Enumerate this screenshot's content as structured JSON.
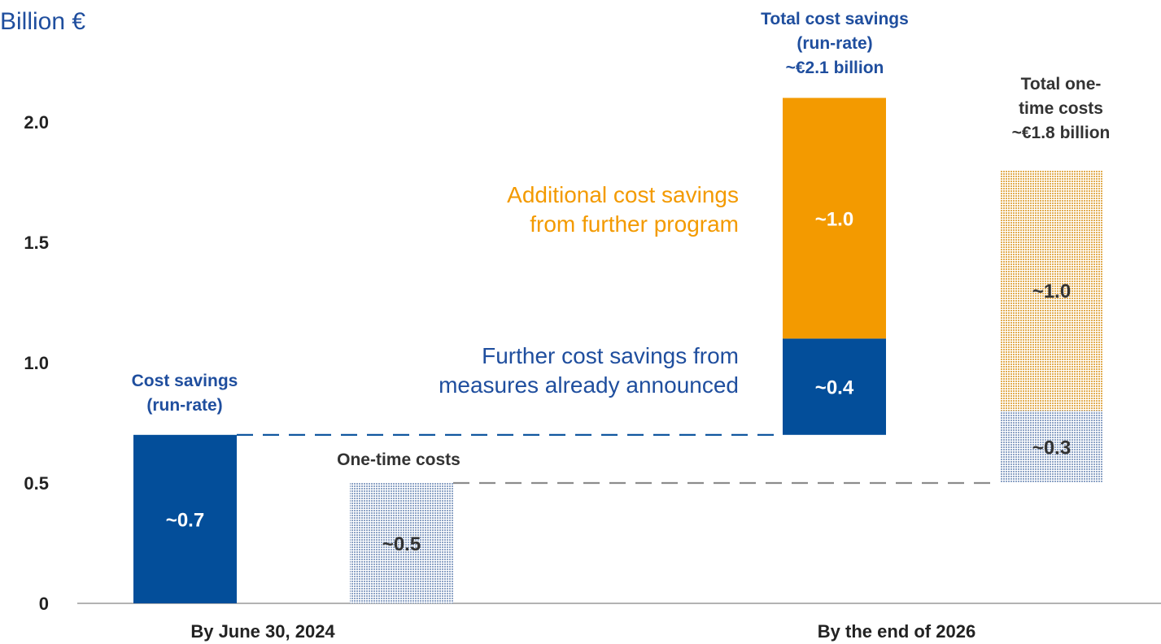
{
  "chart_data": {
    "type": "bar",
    "unit_label": "Billion €",
    "y_ticks": [
      "0",
      "0.5",
      "1.0",
      "1.5",
      "2.0"
    ],
    "ylim": [
      0,
      2.1
    ],
    "grid": false,
    "categories": [
      "By June 30, 2024",
      "By the end of 2026"
    ],
    "colors": {
      "navy": "#034e9a",
      "orange": "#f39a00",
      "hatch_blue": "#b4c2d8",
      "hatch_orange": "#e8c27a",
      "text_blue": "#1f4e9e",
      "text_dark": "#333333"
    },
    "bars": [
      {
        "id": "cost-savings-2024",
        "category": "By June 30, 2024",
        "segments": [
          {
            "start": 0,
            "end": 0.7,
            "label": "~0.7",
            "fill": "navy"
          }
        ],
        "annotation": [
          "Cost savings",
          "(run-rate)"
        ]
      },
      {
        "id": "one-time-costs-2024",
        "category": "By June 30, 2024",
        "segments": [
          {
            "start": 0,
            "end": 0.5,
            "label": "~0.5",
            "fill": "hatch_blue"
          }
        ],
        "annotation": [
          "One-time costs"
        ]
      },
      {
        "id": "total-cost-savings-2026",
        "category": "By the end of 2026",
        "segments": [
          {
            "start": 0.7,
            "end": 1.1,
            "label": "~0.4",
            "fill": "navy"
          },
          {
            "start": 1.1,
            "end": 2.1,
            "label": "~1.0",
            "fill": "orange"
          }
        ],
        "annotation": [
          "Total cost savings",
          "(run-rate)",
          "~€2.1 billion"
        ]
      },
      {
        "id": "total-one-time-costs-2026",
        "category": "By the end of 2026",
        "segments": [
          {
            "start": 0.5,
            "end": 0.8,
            "label": "~0.3",
            "fill": "hatch_blue"
          },
          {
            "start": 0.8,
            "end": 1.8,
            "label": "~1.0",
            "fill": "hatch_orange"
          }
        ],
        "annotation": [
          "Total one-",
          "time costs",
          "~€1.8 billion"
        ]
      }
    ],
    "side_labels": [
      {
        "lines": [
          "Additional cost savings",
          "from further program"
        ],
        "color": "orange"
      },
      {
        "lines": [
          "Further cost savings from",
          "measures already announced"
        ],
        "color": "text_blue"
      }
    ],
    "connectors": [
      {
        "level": 0.7,
        "from": "cost-savings-2024",
        "to": "total-cost-savings-2026",
        "color": "navy"
      },
      {
        "level": 0.5,
        "from": "one-time-costs-2024",
        "to": "total-one-time-costs-2026",
        "color": "grey"
      }
    ]
  }
}
